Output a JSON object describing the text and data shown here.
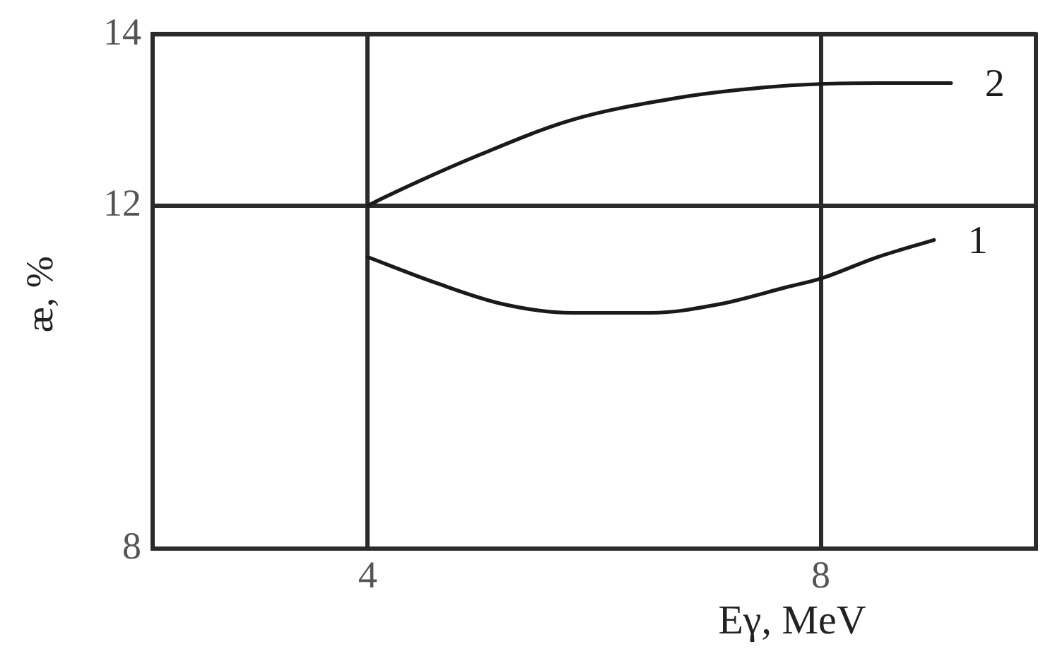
{
  "chart_data": {
    "type": "line",
    "xlabel": "Eγ, MeV",
    "ylabel": "æ, %",
    "xlim": [
      2.1,
      9.9
    ],
    "xticks": [
      4,
      8
    ],
    "ylim": [
      8,
      14
    ],
    "yticks": [
      8,
      12,
      14
    ],
    "grid": true,
    "legend": false,
    "marker": "none",
    "line_style": "solid",
    "series": [
      {
        "name": "1",
        "color": "#1a1a1a",
        "x": [
          4.0,
          4.6,
          5.2,
          5.8,
          6.5,
          7.1,
          7.7,
          8.0,
          8.5,
          9.0
        ],
        "values": [
          11.4,
          11.1,
          10.85,
          10.75,
          10.75,
          10.85,
          11.05,
          11.15,
          11.4,
          11.6
        ]
      },
      {
        "name": "2",
        "color": "#1a1a1a",
        "x": [
          4.0,
          4.15,
          5.0,
          5.8,
          6.7,
          7.5,
          8.0,
          8.5,
          9.15
        ],
        "values": [
          12.0,
          12.1,
          12.6,
          13.0,
          13.25,
          13.38,
          13.42,
          13.43,
          13.43
        ]
      }
    ]
  }
}
